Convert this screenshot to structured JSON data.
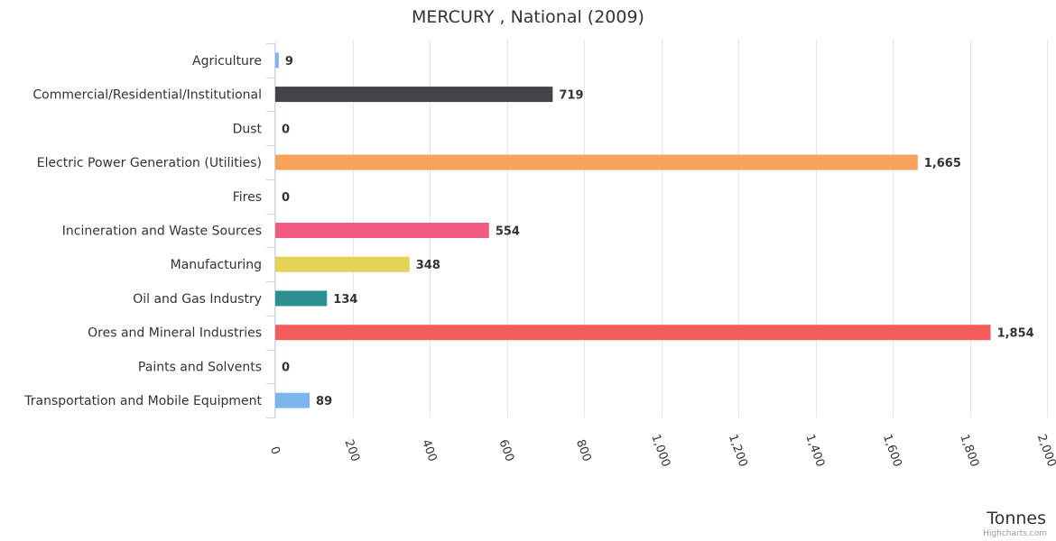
{
  "chart_data": {
    "type": "bar",
    "orientation": "horizontal",
    "title": "MERCURY , National (2009)",
    "xlabel": "Tonnes",
    "ylabel": "",
    "xlim": [
      0,
      2000
    ],
    "ticks": [
      0,
      200,
      400,
      600,
      800,
      1000,
      1200,
      1400,
      1600,
      1800,
      2000
    ],
    "tick_labels": [
      "0",
      "200",
      "400",
      "600",
      "800",
      "1,000",
      "1,200",
      "1,400",
      "1,600",
      "1,800",
      "2,000"
    ],
    "grid": true,
    "categories": [
      "Agriculture",
      "Commercial/Residential/Institutional",
      "Dust",
      "Electric Power Generation (Utilities)",
      "Fires",
      "Incineration and Waste Sources",
      "Manufacturing",
      "Oil and Gas Industry",
      "Ores and Mineral Industries",
      "Paints and Solvents",
      "Transportation and Mobile Equipment"
    ],
    "values": [
      9,
      719,
      0,
      1665,
      0,
      554,
      348,
      134,
      1854,
      0,
      89
    ],
    "value_labels": [
      "9",
      "719",
      "0",
      "1,665",
      "0",
      "554",
      "348",
      "134",
      "1,854",
      "0",
      "89"
    ],
    "colors": [
      "#7cb5ec",
      "#434348",
      "#90ed7d",
      "#f7a35c",
      "#8085e9",
      "#f15c80",
      "#e4d354",
      "#2b908f",
      "#f45b5b",
      "#91e8e1",
      "#7cb5ec"
    ]
  },
  "credits": "Highcharts.com"
}
